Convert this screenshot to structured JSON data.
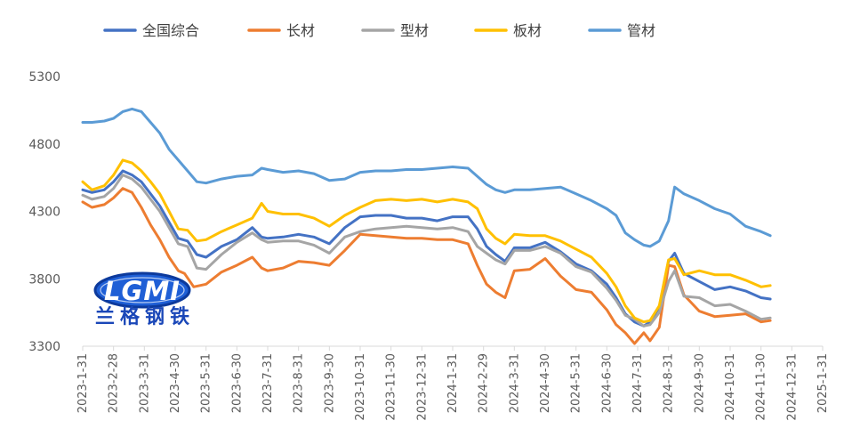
{
  "chart_data": {
    "type": "line",
    "title": "",
    "xlabel": "",
    "ylabel": "",
    "ylim": [
      3300,
      5300
    ],
    "yticks": [
      3300,
      3800,
      4300,
      4800,
      5300
    ],
    "xticks": [
      "2023-1-31",
      "2023-2-28",
      "2023-3-31",
      "2023-4-30",
      "2023-5-31",
      "2023-6-30",
      "2023-7-31",
      "2023-8-31",
      "2023-9-30",
      "2023-10-31",
      "2023-11-30",
      "2023-12-31",
      "2024-1-31",
      "2024-2-29",
      "2024-3-31",
      "2024-4-30",
      "2024-5-31",
      "2024-6-30",
      "2024-7-31",
      "2024-8-31",
      "2024-9-30",
      "2024-10-31",
      "2024-11-30",
      "2024-12-31",
      "2025-1-31"
    ],
    "grid": false,
    "legend_position": "top",
    "colors": {
      "全国综合": "#4472c4",
      "长材": "#ed7d31",
      "型材": "#a5a5a5",
      "板材": "#ffc000",
      "管材": "#5b9bd5"
    },
    "series": [
      {
        "name": "全国综合",
        "points": [
          [
            0,
            4460
          ],
          [
            0.3,
            4440
          ],
          [
            0.7,
            4460
          ],
          [
            1.0,
            4520
          ],
          [
            1.3,
            4600
          ],
          [
            1.6,
            4570
          ],
          [
            1.9,
            4520
          ],
          [
            2.2,
            4430
          ],
          [
            2.5,
            4340
          ],
          [
            2.8,
            4220
          ],
          [
            3.1,
            4100
          ],
          [
            3.4,
            4080
          ],
          [
            3.7,
            3980
          ],
          [
            4.0,
            3960
          ],
          [
            4.5,
            4040
          ],
          [
            5.0,
            4090
          ],
          [
            5.5,
            4180
          ],
          [
            5.8,
            4110
          ],
          [
            6.0,
            4100
          ],
          [
            6.5,
            4110
          ],
          [
            7.0,
            4130
          ],
          [
            7.5,
            4110
          ],
          [
            8.0,
            4060
          ],
          [
            8.5,
            4180
          ],
          [
            9.0,
            4260
          ],
          [
            9.5,
            4270
          ],
          [
            10.0,
            4270
          ],
          [
            10.5,
            4250
          ],
          [
            11.0,
            4250
          ],
          [
            11.5,
            4230
          ],
          [
            12.0,
            4260
          ],
          [
            12.5,
            4260
          ],
          [
            12.8,
            4170
          ],
          [
            13.1,
            4040
          ],
          [
            13.4,
            3980
          ],
          [
            13.7,
            3930
          ],
          [
            14.0,
            4030
          ],
          [
            14.5,
            4030
          ],
          [
            15.0,
            4070
          ],
          [
            15.5,
            4000
          ],
          [
            16.0,
            3910
          ],
          [
            16.5,
            3860
          ],
          [
            17.0,
            3760
          ],
          [
            17.3,
            3660
          ],
          [
            17.6,
            3540
          ],
          [
            17.9,
            3480
          ],
          [
            18.2,
            3450
          ],
          [
            18.4,
            3480
          ],
          [
            18.7,
            3590
          ],
          [
            19.0,
            3930
          ],
          [
            19.2,
            3990
          ],
          [
            19.5,
            3840
          ],
          [
            20.0,
            3780
          ],
          [
            20.5,
            3720
          ],
          [
            21.0,
            3740
          ],
          [
            21.5,
            3710
          ],
          [
            22.0,
            3660
          ],
          [
            22.3,
            3650
          ]
        ]
      },
      {
        "name": "长材",
        "points": [
          [
            0,
            4370
          ],
          [
            0.3,
            4330
          ],
          [
            0.7,
            4350
          ],
          [
            1.0,
            4400
          ],
          [
            1.3,
            4470
          ],
          [
            1.6,
            4440
          ],
          [
            1.9,
            4330
          ],
          [
            2.2,
            4200
          ],
          [
            2.5,
            4090
          ],
          [
            2.8,
            3960
          ],
          [
            3.1,
            3860
          ],
          [
            3.3,
            3840
          ],
          [
            3.6,
            3740
          ],
          [
            4.0,
            3760
          ],
          [
            4.5,
            3850
          ],
          [
            5.0,
            3900
          ],
          [
            5.5,
            3960
          ],
          [
            5.8,
            3880
          ],
          [
            6.0,
            3860
          ],
          [
            6.5,
            3880
          ],
          [
            7.0,
            3930
          ],
          [
            7.5,
            3920
          ],
          [
            8.0,
            3900
          ],
          [
            8.5,
            4010
          ],
          [
            9.0,
            4130
          ],
          [
            9.5,
            4120
          ],
          [
            10.0,
            4110
          ],
          [
            10.5,
            4100
          ],
          [
            11.0,
            4100
          ],
          [
            11.5,
            4090
          ],
          [
            12.0,
            4090
          ],
          [
            12.5,
            4060
          ],
          [
            12.8,
            3900
          ],
          [
            13.1,
            3760
          ],
          [
            13.4,
            3700
          ],
          [
            13.7,
            3660
          ],
          [
            14.0,
            3860
          ],
          [
            14.5,
            3870
          ],
          [
            15.0,
            3950
          ],
          [
            15.5,
            3820
          ],
          [
            16.0,
            3720
          ],
          [
            16.5,
            3700
          ],
          [
            17.0,
            3570
          ],
          [
            17.3,
            3460
          ],
          [
            17.6,
            3400
          ],
          [
            17.9,
            3320
          ],
          [
            18.2,
            3400
          ],
          [
            18.4,
            3340
          ],
          [
            18.7,
            3440
          ],
          [
            19.0,
            3900
          ],
          [
            19.2,
            3890
          ],
          [
            19.5,
            3680
          ],
          [
            20.0,
            3560
          ],
          [
            20.5,
            3520
          ],
          [
            21.0,
            3530
          ],
          [
            21.5,
            3540
          ],
          [
            22.0,
            3480
          ],
          [
            22.3,
            3490
          ]
        ]
      },
      {
        "name": "型材",
        "points": [
          [
            0,
            4420
          ],
          [
            0.3,
            4390
          ],
          [
            0.7,
            4410
          ],
          [
            1.0,
            4470
          ],
          [
            1.3,
            4570
          ],
          [
            1.6,
            4540
          ],
          [
            1.9,
            4480
          ],
          [
            2.2,
            4390
          ],
          [
            2.5,
            4300
          ],
          [
            2.8,
            4180
          ],
          [
            3.1,
            4060
          ],
          [
            3.4,
            4040
          ],
          [
            3.7,
            3880
          ],
          [
            4.0,
            3870
          ],
          [
            4.5,
            3980
          ],
          [
            5.0,
            4070
          ],
          [
            5.5,
            4140
          ],
          [
            5.8,
            4090
          ],
          [
            6.0,
            4070
          ],
          [
            6.5,
            4080
          ],
          [
            7.0,
            4080
          ],
          [
            7.5,
            4050
          ],
          [
            8.0,
            3990
          ],
          [
            8.5,
            4110
          ],
          [
            9.0,
            4150
          ],
          [
            9.5,
            4170
          ],
          [
            10.0,
            4180
          ],
          [
            10.5,
            4190
          ],
          [
            11.0,
            4180
          ],
          [
            11.5,
            4170
          ],
          [
            12.0,
            4180
          ],
          [
            12.5,
            4150
          ],
          [
            12.8,
            4040
          ],
          [
            13.1,
            3990
          ],
          [
            13.4,
            3940
          ],
          [
            13.7,
            3910
          ],
          [
            14.0,
            4010
          ],
          [
            14.5,
            4010
          ],
          [
            15.0,
            4040
          ],
          [
            15.5,
            3990
          ],
          [
            16.0,
            3890
          ],
          [
            16.5,
            3850
          ],
          [
            17.0,
            3730
          ],
          [
            17.3,
            3640
          ],
          [
            17.6,
            3530
          ],
          [
            17.9,
            3500
          ],
          [
            18.2,
            3450
          ],
          [
            18.4,
            3460
          ],
          [
            18.7,
            3550
          ],
          [
            19.0,
            3780
          ],
          [
            19.2,
            3860
          ],
          [
            19.5,
            3670
          ],
          [
            20.0,
            3660
          ],
          [
            20.5,
            3600
          ],
          [
            21.0,
            3610
          ],
          [
            21.5,
            3560
          ],
          [
            22.0,
            3500
          ],
          [
            22.3,
            3510
          ]
        ]
      },
      {
        "name": "板材",
        "points": [
          [
            0,
            4520
          ],
          [
            0.3,
            4460
          ],
          [
            0.7,
            4490
          ],
          [
            1.0,
            4570
          ],
          [
            1.3,
            4680
          ],
          [
            1.6,
            4660
          ],
          [
            1.9,
            4600
          ],
          [
            2.2,
            4520
          ],
          [
            2.5,
            4430
          ],
          [
            2.8,
            4300
          ],
          [
            3.1,
            4170
          ],
          [
            3.4,
            4160
          ],
          [
            3.7,
            4080
          ],
          [
            4.0,
            4090
          ],
          [
            4.5,
            4150
          ],
          [
            5.0,
            4200
          ],
          [
            5.5,
            4250
          ],
          [
            5.8,
            4360
          ],
          [
            6.0,
            4300
          ],
          [
            6.5,
            4280
          ],
          [
            7.0,
            4280
          ],
          [
            7.5,
            4250
          ],
          [
            8.0,
            4190
          ],
          [
            8.5,
            4270
          ],
          [
            9.0,
            4330
          ],
          [
            9.5,
            4380
          ],
          [
            10.0,
            4390
          ],
          [
            10.5,
            4380
          ],
          [
            11.0,
            4390
          ],
          [
            11.5,
            4370
          ],
          [
            12.0,
            4390
          ],
          [
            12.5,
            4370
          ],
          [
            12.8,
            4320
          ],
          [
            13.1,
            4170
          ],
          [
            13.4,
            4100
          ],
          [
            13.7,
            4060
          ],
          [
            14.0,
            4130
          ],
          [
            14.5,
            4120
          ],
          [
            15.0,
            4120
          ],
          [
            15.5,
            4080
          ],
          [
            16.0,
            4020
          ],
          [
            16.5,
            3960
          ],
          [
            17.0,
            3840
          ],
          [
            17.3,
            3740
          ],
          [
            17.6,
            3600
          ],
          [
            17.9,
            3510
          ],
          [
            18.2,
            3480
          ],
          [
            18.4,
            3490
          ],
          [
            18.7,
            3600
          ],
          [
            19.0,
            3940
          ],
          [
            19.2,
            3950
          ],
          [
            19.5,
            3830
          ],
          [
            20.0,
            3860
          ],
          [
            20.5,
            3830
          ],
          [
            21.0,
            3830
          ],
          [
            21.5,
            3790
          ],
          [
            22.0,
            3740
          ],
          [
            22.3,
            3750
          ]
        ]
      },
      {
        "name": "管材",
        "points": [
          [
            0,
            4960
          ],
          [
            0.3,
            4960
          ],
          [
            0.7,
            4970
          ],
          [
            1.0,
            4990
          ],
          [
            1.3,
            5040
          ],
          [
            1.6,
            5060
          ],
          [
            1.9,
            5040
          ],
          [
            2.2,
            4960
          ],
          [
            2.5,
            4880
          ],
          [
            2.8,
            4760
          ],
          [
            3.1,
            4680
          ],
          [
            3.4,
            4600
          ],
          [
            3.7,
            4520
          ],
          [
            4.0,
            4510
          ],
          [
            4.5,
            4540
          ],
          [
            5.0,
            4560
          ],
          [
            5.5,
            4570
          ],
          [
            5.8,
            4620
          ],
          [
            6.0,
            4610
          ],
          [
            6.5,
            4590
          ],
          [
            7.0,
            4600
          ],
          [
            7.5,
            4580
          ],
          [
            8.0,
            4530
          ],
          [
            8.5,
            4540
          ],
          [
            9.0,
            4590
          ],
          [
            9.5,
            4600
          ],
          [
            10.0,
            4600
          ],
          [
            10.5,
            4610
          ],
          [
            11.0,
            4610
          ],
          [
            11.5,
            4620
          ],
          [
            12.0,
            4630
          ],
          [
            12.5,
            4620
          ],
          [
            12.8,
            4560
          ],
          [
            13.1,
            4500
          ],
          [
            13.4,
            4460
          ],
          [
            13.7,
            4440
          ],
          [
            14.0,
            4460
          ],
          [
            14.5,
            4460
          ],
          [
            15.0,
            4470
          ],
          [
            15.5,
            4480
          ],
          [
            16.0,
            4430
          ],
          [
            16.5,
            4380
          ],
          [
            17.0,
            4320
          ],
          [
            17.3,
            4270
          ],
          [
            17.6,
            4140
          ],
          [
            17.9,
            4090
          ],
          [
            18.2,
            4050
          ],
          [
            18.4,
            4040
          ],
          [
            18.7,
            4080
          ],
          [
            19.0,
            4230
          ],
          [
            19.2,
            4480
          ],
          [
            19.5,
            4430
          ],
          [
            20.0,
            4380
          ],
          [
            20.5,
            4320
          ],
          [
            21.0,
            4280
          ],
          [
            21.5,
            4190
          ],
          [
            22.0,
            4150
          ],
          [
            22.3,
            4120
          ]
        ]
      }
    ]
  },
  "watermark": {
    "logo_text": "LGMI",
    "brand_text": "兰格钢铁"
  }
}
